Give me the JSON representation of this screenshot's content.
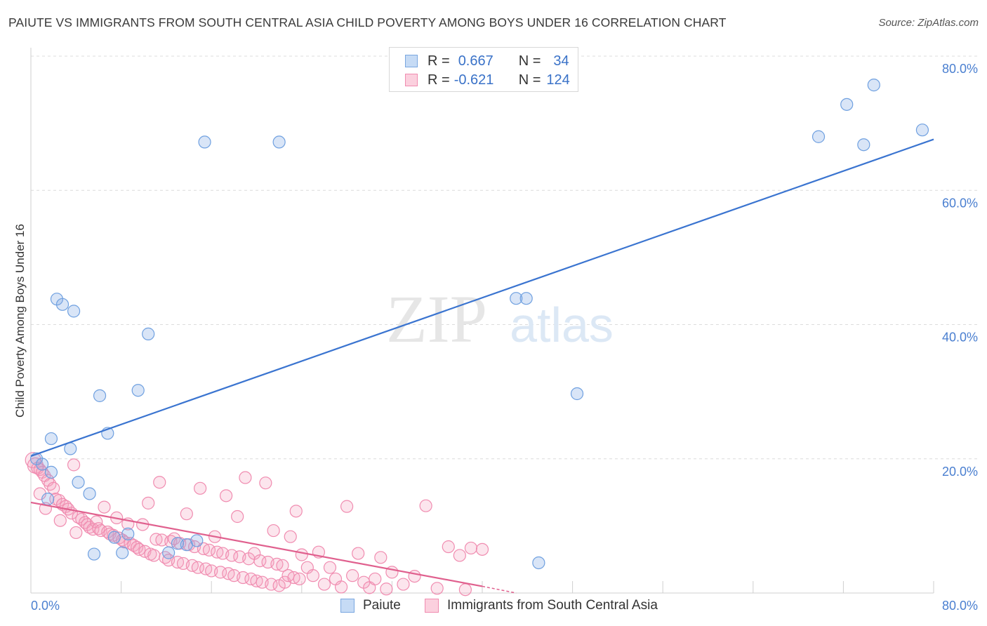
{
  "title": "PAIUTE VS IMMIGRANTS FROM SOUTH CENTRAL ASIA CHILD POVERTY AMONG BOYS UNDER 16 CORRELATION CHART",
  "source": "Source: ZipAtlas.com",
  "watermark": {
    "zip": "ZIP",
    "atlas": "atlas"
  },
  "colors": {
    "paiute": "#6fa0e0",
    "paiute_line": "#3a74d0",
    "immigrants": "#f08cb0",
    "immigrants_line": "#e0608e",
    "axis_text": "#4a7fd0"
  },
  "legend": {
    "rows": [
      {
        "r_label": "R =",
        "r_value": "0.667",
        "n_label": "N =",
        "n_value": "34"
      },
      {
        "r_label": "R =",
        "r_value": "-0.621",
        "n_label": "N =",
        "n_value": "124"
      }
    ]
  },
  "bottom_legend": {
    "series1": "Paiute",
    "series2": "Immigrants from South Central Asia"
  },
  "chart_data": {
    "type": "scatter",
    "title": "PAIUTE VS IMMIGRANTS FROM SOUTH CENTRAL ASIA CHILD POVERTY AMONG BOYS UNDER 16 CORRELATION CHART",
    "xlabel": "",
    "ylabel": "Child Poverty Among Boys Under 16",
    "xlim": [
      0,
      80
    ],
    "ylim": [
      0,
      80
    ],
    "x_tick_labels": {
      "left": "0.0%",
      "right": "80.0%"
    },
    "y_ticks": [
      {
        "value": 20,
        "label": "20.0%"
      },
      {
        "value": 40,
        "label": "40.0%"
      },
      {
        "value": 60,
        "label": "60.0%"
      },
      {
        "value": 80,
        "label": "80.0%"
      }
    ],
    "series": [
      {
        "name": "Paiute",
        "trend": {
          "x0": 0,
          "y0": 20.4,
          "x1": 80,
          "y1": 67.6
        },
        "points": [
          [
            0.5,
            20.0
          ],
          [
            1.0,
            19.2
          ],
          [
            1.8,
            18.0
          ],
          [
            1.5,
            14.0
          ],
          [
            1.8,
            23.0
          ],
          [
            2.3,
            43.8
          ],
          [
            2.8,
            43.0
          ],
          [
            3.8,
            42.0
          ],
          [
            3.5,
            21.5
          ],
          [
            4.2,
            16.5
          ],
          [
            5.2,
            14.8
          ],
          [
            5.6,
            5.8
          ],
          [
            6.1,
            29.4
          ],
          [
            6.8,
            23.8
          ],
          [
            7.4,
            8.3
          ],
          [
            8.1,
            6.0
          ],
          [
            8.6,
            8.8
          ],
          [
            9.5,
            30.2
          ],
          [
            10.4,
            38.6
          ],
          [
            12.2,
            6.0
          ],
          [
            13.0,
            7.4
          ],
          [
            13.8,
            7.2
          ],
          [
            14.7,
            7.8
          ],
          [
            15.4,
            67.2
          ],
          [
            22.0,
            67.2
          ],
          [
            43.0,
            43.9
          ],
          [
            43.9,
            43.9
          ],
          [
            48.4,
            29.7
          ],
          [
            45.0,
            4.5
          ],
          [
            69.8,
            68.0
          ],
          [
            72.3,
            72.8
          ],
          [
            73.8,
            66.8
          ],
          [
            74.7,
            75.7
          ],
          [
            79.0,
            69.0
          ]
        ]
      },
      {
        "name": "Immigrants from South Central Asia",
        "trend": {
          "x0": 0,
          "y0": 13.5,
          "x1": 40,
          "y1": 1.0,
          "dash_to_x": 43,
          "dash_to_y": 0.0
        },
        "points": [
          [
            0.2,
            19.8
          ],
          [
            0.4,
            19.0
          ],
          [
            0.6,
            18.6
          ],
          [
            0.8,
            18.4
          ],
          [
            1.0,
            18.0
          ],
          [
            1.2,
            17.5
          ],
          [
            1.5,
            16.8
          ],
          [
            1.7,
            16.2
          ],
          [
            2.0,
            15.6
          ],
          [
            2.2,
            14.0
          ],
          [
            2.5,
            13.8
          ],
          [
            2.8,
            13.2
          ],
          [
            3.1,
            12.9
          ],
          [
            3.3,
            12.5
          ],
          [
            3.6,
            11.9
          ],
          [
            3.8,
            19.1
          ],
          [
            4.0,
            9.0
          ],
          [
            4.2,
            11.3
          ],
          [
            4.5,
            11.0
          ],
          [
            4.8,
            10.5
          ],
          [
            5.0,
            10.2
          ],
          [
            5.2,
            9.8
          ],
          [
            5.5,
            9.5
          ],
          [
            5.8,
            10.6
          ],
          [
            6.0,
            9.6
          ],
          [
            6.2,
            9.3
          ],
          [
            6.5,
            12.8
          ],
          [
            6.8,
            9.1
          ],
          [
            7.0,
            8.8
          ],
          [
            7.3,
            8.6
          ],
          [
            7.6,
            11.2
          ],
          [
            7.8,
            8.2
          ],
          [
            8.1,
            7.9
          ],
          [
            8.3,
            7.6
          ],
          [
            8.6,
            10.3
          ],
          [
            8.8,
            7.4
          ],
          [
            9.1,
            7.1
          ],
          [
            9.4,
            6.8
          ],
          [
            9.6,
            6.5
          ],
          [
            9.9,
            10.2
          ],
          [
            10.1,
            6.2
          ],
          [
            10.4,
            13.4
          ],
          [
            10.6,
            5.8
          ],
          [
            10.9,
            5.6
          ],
          [
            11.1,
            8.0
          ],
          [
            11.4,
            16.5
          ],
          [
            11.6,
            7.9
          ],
          [
            11.9,
            5.3
          ],
          [
            12.2,
            4.9
          ],
          [
            12.4,
            7.7
          ],
          [
            12.7,
            8.1
          ],
          [
            13.0,
            4.6
          ],
          [
            13.2,
            7.4
          ],
          [
            13.5,
            4.4
          ],
          [
            13.8,
            11.8
          ],
          [
            14.0,
            7.2
          ],
          [
            14.3,
            4.1
          ],
          [
            14.5,
            6.9
          ],
          [
            14.8,
            3.8
          ],
          [
            15.0,
            15.6
          ],
          [
            15.3,
            6.6
          ],
          [
            15.5,
            3.6
          ],
          [
            15.8,
            6.4
          ],
          [
            16.0,
            3.3
          ],
          [
            16.3,
            8.4
          ],
          [
            16.5,
            6.1
          ],
          [
            16.8,
            3.1
          ],
          [
            17.0,
            5.9
          ],
          [
            17.3,
            14.5
          ],
          [
            17.5,
            2.9
          ],
          [
            17.8,
            5.6
          ],
          [
            18.0,
            2.6
          ],
          [
            18.3,
            11.4
          ],
          [
            18.5,
            5.4
          ],
          [
            18.8,
            2.3
          ],
          [
            19.0,
            17.2
          ],
          [
            19.3,
            5.1
          ],
          [
            19.5,
            2.1
          ],
          [
            19.8,
            5.9
          ],
          [
            20.0,
            1.8
          ],
          [
            20.3,
            4.8
          ],
          [
            20.5,
            1.6
          ],
          [
            20.8,
            16.4
          ],
          [
            21.0,
            4.6
          ],
          [
            21.3,
            1.3
          ],
          [
            21.5,
            9.3
          ],
          [
            21.8,
            4.3
          ],
          [
            22.0,
            1.1
          ],
          [
            22.3,
            4.1
          ],
          [
            22.5,
            1.6
          ],
          [
            22.8,
            2.6
          ],
          [
            23.0,
            8.4
          ],
          [
            23.3,
            2.3
          ],
          [
            23.5,
            12.2
          ],
          [
            23.8,
            2.1
          ],
          [
            24.0,
            5.7
          ],
          [
            24.5,
            3.8
          ],
          [
            25.0,
            2.6
          ],
          [
            25.5,
            6.1
          ],
          [
            26.0,
            1.3
          ],
          [
            26.5,
            3.8
          ],
          [
            27.0,
            2.1
          ],
          [
            27.5,
            0.9
          ],
          [
            28.0,
            12.9
          ],
          [
            28.5,
            2.6
          ],
          [
            29.0,
            5.9
          ],
          [
            29.5,
            1.6
          ],
          [
            30.0,
            0.8
          ],
          [
            30.5,
            2.1
          ],
          [
            31.0,
            5.3
          ],
          [
            31.5,
            0.6
          ],
          [
            32.0,
            3.1
          ],
          [
            33.0,
            1.3
          ],
          [
            34.0,
            2.5
          ],
          [
            35.0,
            13.0
          ],
          [
            36.0,
            0.7
          ],
          [
            37.0,
            6.9
          ],
          [
            38.0,
            5.6
          ],
          [
            38.5,
            0.5
          ],
          [
            39.0,
            6.7
          ],
          [
            40.0,
            6.5
          ],
          [
            0.8,
            14.8
          ],
          [
            1.3,
            12.6
          ],
          [
            2.6,
            10.8
          ]
        ]
      }
    ]
  }
}
